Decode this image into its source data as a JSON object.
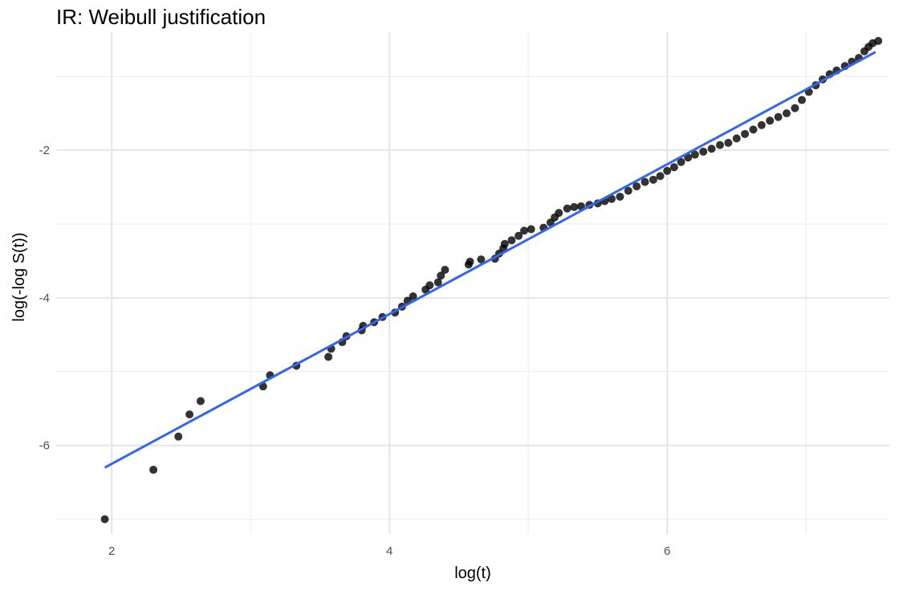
{
  "chart_data": {
    "type": "scatter",
    "title": "IR: Weibull justification",
    "xlabel": "log(t)",
    "ylabel": "log(-log S(t))",
    "xlim": [
      1.6,
      7.6
    ],
    "ylim": [
      -7.2,
      -0.4
    ],
    "x_ticks": [
      2,
      4,
      6
    ],
    "y_ticks": [
      -6,
      -4,
      -2
    ],
    "grid": true,
    "legend": "none",
    "point_color": "#000000",
    "line_color": "#3366ee",
    "points": [
      [
        1.95,
        -7.0
      ],
      [
        2.3,
        -6.33
      ],
      [
        2.48,
        -5.88
      ],
      [
        2.56,
        -5.58
      ],
      [
        2.64,
        -5.4
      ],
      [
        3.09,
        -5.2
      ],
      [
        3.14,
        -5.05
      ],
      [
        3.33,
        -4.92
      ],
      [
        3.56,
        -4.8
      ],
      [
        3.58,
        -4.69
      ],
      [
        3.66,
        -4.6
      ],
      [
        3.69,
        -4.52
      ],
      [
        3.8,
        -4.44
      ],
      [
        3.81,
        -4.38
      ],
      [
        3.89,
        -4.33
      ],
      [
        3.95,
        -4.26
      ],
      [
        4.04,
        -4.2
      ],
      [
        4.09,
        -4.12
      ],
      [
        4.13,
        -4.04
      ],
      [
        4.17,
        -3.98
      ],
      [
        4.26,
        -3.89
      ],
      [
        4.29,
        -3.83
      ],
      [
        4.35,
        -3.79
      ],
      [
        4.37,
        -3.7
      ],
      [
        4.4,
        -3.62
      ],
      [
        4.57,
        -3.55
      ],
      [
        4.58,
        -3.51
      ],
      [
        4.66,
        -3.48
      ],
      [
        4.76,
        -3.47
      ],
      [
        4.79,
        -3.4
      ],
      [
        4.82,
        -3.33
      ],
      [
        4.83,
        -3.27
      ],
      [
        4.88,
        -3.22
      ],
      [
        4.93,
        -3.16
      ],
      [
        4.97,
        -3.09
      ],
      [
        5.02,
        -3.07
      ],
      [
        5.11,
        -3.05
      ],
      [
        5.16,
        -2.98
      ],
      [
        5.19,
        -2.91
      ],
      [
        5.22,
        -2.85
      ],
      [
        5.28,
        -2.79
      ],
      [
        5.33,
        -2.77
      ],
      [
        5.38,
        -2.76
      ],
      [
        5.44,
        -2.74
      ],
      [
        5.5,
        -2.72
      ],
      [
        5.55,
        -2.69
      ],
      [
        5.6,
        -2.66
      ],
      [
        5.66,
        -2.63
      ],
      [
        5.72,
        -2.55
      ],
      [
        5.78,
        -2.49
      ],
      [
        5.84,
        -2.43
      ],
      [
        5.9,
        -2.4
      ],
      [
        5.95,
        -2.35
      ],
      [
        6.0,
        -2.28
      ],
      [
        6.05,
        -2.23
      ],
      [
        6.1,
        -2.16
      ],
      [
        6.15,
        -2.1
      ],
      [
        6.2,
        -2.06
      ],
      [
        6.26,
        -2.02
      ],
      [
        6.32,
        -1.98
      ],
      [
        6.38,
        -1.93
      ],
      [
        6.44,
        -1.9
      ],
      [
        6.5,
        -1.84
      ],
      [
        6.56,
        -1.78
      ],
      [
        6.62,
        -1.72
      ],
      [
        6.68,
        -1.66
      ],
      [
        6.74,
        -1.6
      ],
      [
        6.8,
        -1.55
      ],
      [
        6.86,
        -1.5
      ],
      [
        6.92,
        -1.43
      ],
      [
        6.97,
        -1.32
      ],
      [
        7.02,
        -1.21
      ],
      [
        7.07,
        -1.12
      ],
      [
        7.12,
        -1.04
      ],
      [
        7.17,
        -0.97
      ],
      [
        7.22,
        -0.92
      ],
      [
        7.28,
        -0.86
      ],
      [
        7.33,
        -0.8
      ],
      [
        7.38,
        -0.75
      ],
      [
        7.42,
        -0.66
      ],
      [
        7.45,
        -0.6
      ],
      [
        7.48,
        -0.55
      ],
      [
        7.52,
        -0.52
      ]
    ],
    "fit_line": {
      "x": [
        1.95,
        7.5
      ],
      "y": [
        -6.3,
        -0.67
      ]
    }
  }
}
